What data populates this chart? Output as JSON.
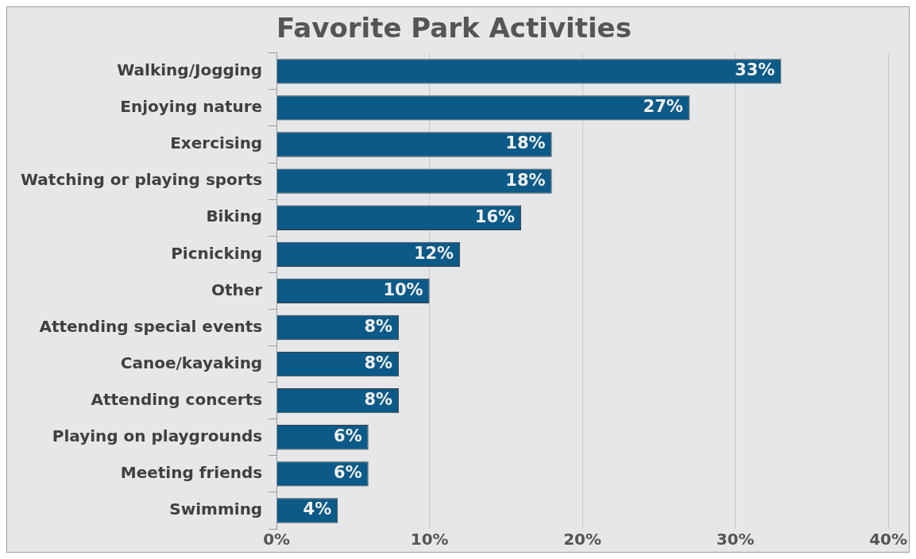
{
  "chart_data": {
    "type": "bar",
    "orientation": "horizontal",
    "title": "Favorite Park Activities",
    "categories": [
      "Walking/Jogging",
      "Enjoying nature",
      "Exercising",
      "Watching or playing sports",
      "Biking",
      "Picnicking",
      "Other",
      "Attending special events",
      "Canoe/kayaking",
      "Attending concerts",
      "Playing on playgrounds",
      "Meeting friends",
      "Swimming"
    ],
    "values": [
      33,
      27,
      18,
      18,
      16,
      12,
      10,
      8,
      8,
      8,
      6,
      6,
      4
    ],
    "value_labels": [
      "33%",
      "27%",
      "18%",
      "18%",
      "16%",
      "12%",
      "10%",
      "8%",
      "8%",
      "8%",
      "6%",
      "6%",
      "4%"
    ],
    "color": "#0b5a87",
    "xlim": [
      0,
      40
    ],
    "xticks": [
      {
        "value": 0,
        "label": "0%"
      },
      {
        "value": 10,
        "label": "10%"
      },
      {
        "value": 20,
        "label": "20%"
      },
      {
        "value": 30,
        "label": "30%"
      },
      {
        "value": 40,
        "label": "40%"
      }
    ],
    "grid": "x",
    "legend": false
  }
}
